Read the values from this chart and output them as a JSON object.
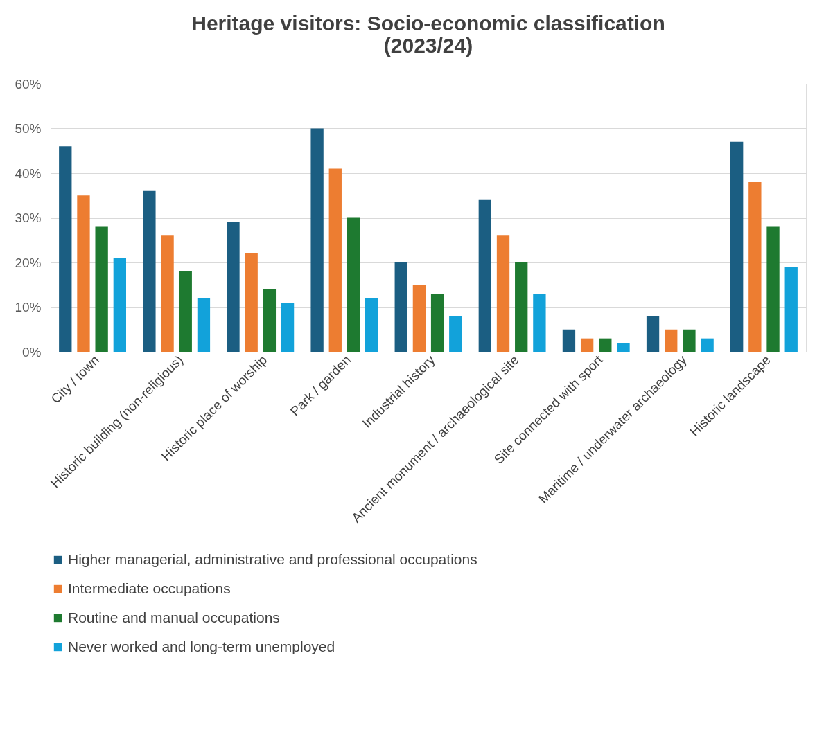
{
  "chart_data": {
    "type": "bar",
    "title": "Heritage visitors: Socio-economic classification (2023/24)",
    "categories": [
      "City / town",
      "Historic building (non-religious)",
      "Historic place of worship",
      "Park / garden",
      "Industrial history",
      "Ancient monument / archaeological site",
      "Site connected with sport",
      "Maritime / underwater archaeology",
      "Historic landscape"
    ],
    "series": [
      {
        "name": "Higher managerial, administrative and professional occupations",
        "color": "#1b5e82",
        "values": [
          46,
          36,
          29,
          50,
          20,
          34,
          5,
          8,
          47
        ]
      },
      {
        "name": "Intermediate occupations",
        "color": "#ed7d31",
        "values": [
          35,
          26,
          22,
          41,
          15,
          26,
          3,
          5,
          38
        ]
      },
      {
        "name": "Routine and manual occupations",
        "color": "#1e7a30",
        "values": [
          28,
          18,
          14,
          30,
          13,
          20,
          3,
          5,
          28
        ]
      },
      {
        "name": "Never worked and long-term unemployed",
        "color": "#12a2da",
        "values": [
          21,
          12,
          11,
          12,
          8,
          13,
          2,
          3,
          19
        ]
      }
    ],
    "ylim": [
      0,
      60
    ],
    "yticks": [
      {
        "value": 0,
        "label": "0%"
      },
      {
        "value": 10,
        "label": "10%"
      },
      {
        "value": 20,
        "label": "20%"
      },
      {
        "value": 30,
        "label": "30%"
      },
      {
        "value": 40,
        "label": "40%"
      },
      {
        "value": 50,
        "label": "50%"
      },
      {
        "value": 60,
        "label": "60%"
      }
    ],
    "grid": "y",
    "legend": "bottom"
  }
}
